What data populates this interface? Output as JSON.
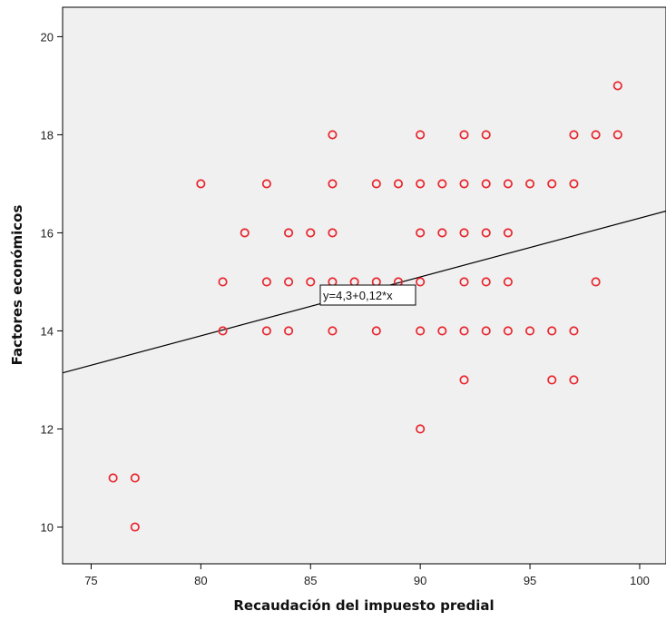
{
  "chart_data": {
    "type": "scatter",
    "title": "",
    "xlabel": "Recaudación del impuesto predial",
    "ylabel": "Factores económicos",
    "xlim": [
      73.7,
      101.2
    ],
    "ylim": [
      9.25,
      20.6
    ],
    "x_ticks": [
      75,
      80,
      85,
      90,
      95,
      100
    ],
    "y_ticks": [
      10,
      12,
      14,
      16,
      18,
      20
    ],
    "grid": false,
    "background_color": "#f0f0f0",
    "marker_color": "#e8272f",
    "marker_style": "open-circle",
    "fit_line": {
      "intercept": 4.3,
      "slope": 0.12,
      "label": "y=4,3+0,12*x"
    },
    "points": [
      [
        76,
        11
      ],
      [
        77,
        11
      ],
      [
        77,
        10
      ],
      [
        80,
        17
      ],
      [
        81,
        15
      ],
      [
        81,
        14
      ],
      [
        82,
        16
      ],
      [
        83,
        17
      ],
      [
        83,
        15
      ],
      [
        83,
        14
      ],
      [
        84,
        16
      ],
      [
        84,
        15
      ],
      [
        84,
        14
      ],
      [
        85,
        16
      ],
      [
        85,
        15
      ],
      [
        86,
        18
      ],
      [
        86,
        17
      ],
      [
        86,
        16
      ],
      [
        86,
        15
      ],
      [
        86,
        14
      ],
      [
        87,
        15
      ],
      [
        88,
        17
      ],
      [
        88,
        15
      ],
      [
        88,
        14
      ],
      [
        89,
        17
      ],
      [
        89,
        15
      ],
      [
        90,
        18
      ],
      [
        90,
        17
      ],
      [
        90,
        16
      ],
      [
        90,
        15
      ],
      [
        90,
        14
      ],
      [
        90,
        12
      ],
      [
        91,
        17
      ],
      [
        91,
        16
      ],
      [
        91,
        14
      ],
      [
        92,
        18
      ],
      [
        92,
        17
      ],
      [
        92,
        16
      ],
      [
        92,
        15
      ],
      [
        92,
        14
      ],
      [
        92,
        13
      ],
      [
        93,
        18
      ],
      [
        93,
        17
      ],
      [
        93,
        16
      ],
      [
        93,
        15
      ],
      [
        93,
        14
      ],
      [
        94,
        17
      ],
      [
        94,
        16
      ],
      [
        94,
        15
      ],
      [
        94,
        14
      ],
      [
        95,
        17
      ],
      [
        95,
        14
      ],
      [
        96,
        17
      ],
      [
        96,
        14
      ],
      [
        96,
        13
      ],
      [
        97,
        18
      ],
      [
        97,
        17
      ],
      [
        97,
        14
      ],
      [
        97,
        13
      ],
      [
        98,
        18
      ],
      [
        98,
        15
      ],
      [
        99,
        19
      ],
      [
        99,
        18
      ]
    ]
  }
}
